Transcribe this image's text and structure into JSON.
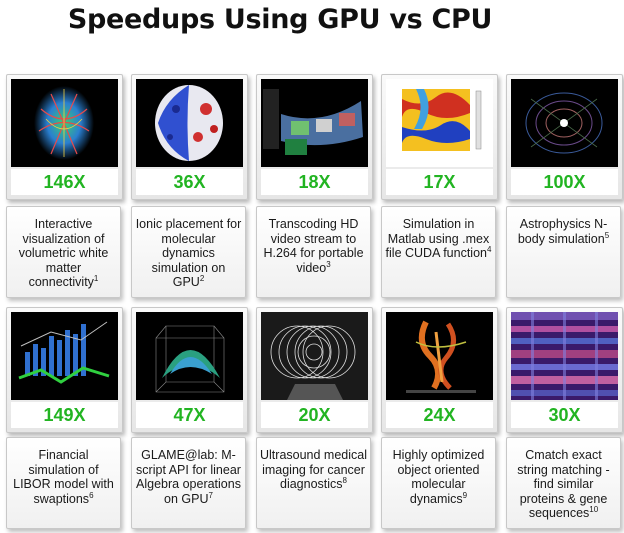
{
  "title": "Speedups Using GPU vs CPU",
  "accent_color": "#22b422",
  "cards": [
    {
      "speedup": "146X",
      "description": "Interactive visualization of volumetric white matter connectivity",
      "ref": "1",
      "image": "brain-connectivity-image"
    },
    {
      "speedup": "36X",
      "description": "Ionic placement for molecular dynamics simulation on GPU",
      "ref": "2",
      "image": "molecular-surface-image"
    },
    {
      "speedup": "18X",
      "description": "Transcoding HD video stream to H.264 for portable video",
      "ref": "3",
      "image": "video-transcoding-image"
    },
    {
      "speedup": "17X",
      "description": "Simulation in Matlab using .mex file CUDA function",
      "ref": "4",
      "image": "matlab-simulation-plot-image"
    },
    {
      "speedup": "100X",
      "description": "Astrophysics N-body simulation",
      "ref": "5",
      "image": "nbody-simulation-image"
    },
    {
      "speedup": "149X",
      "description": "Financial simulation of LIBOR model with swaptions",
      "ref": "6",
      "image": "financial-chart-image"
    },
    {
      "speedup": "47X",
      "description": "GLAME@lab: M-script API for linear Algebra operations on GPU",
      "ref": "7",
      "image": "surface-plot-image"
    },
    {
      "speedup": "20X",
      "description": "Ultrasound medical imaging for cancer diagnostics",
      "ref": "8",
      "image": "ultrasound-image"
    },
    {
      "speedup": "24X",
      "description": "Highly optimized object oriented molecular dynamics",
      "ref": "9",
      "image": "protein-structure-image"
    },
    {
      "speedup": "30X",
      "description": "Cmatch exact string matching - find similar proteins & gene sequences",
      "ref": "10",
      "image": "sequence-matrix-image"
    }
  ]
}
